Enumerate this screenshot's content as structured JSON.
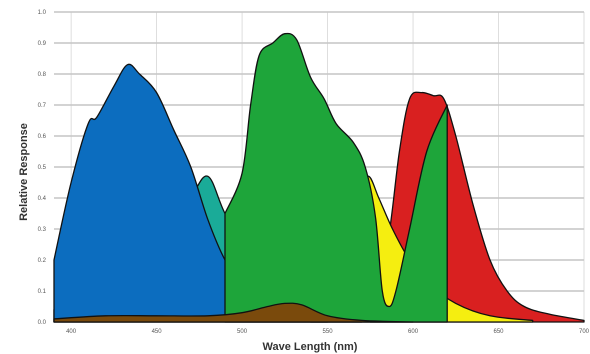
{
  "chart_data": {
    "type": "area",
    "title": "",
    "xlabel": "Wave Length (nm)",
    "ylabel": "Relative Response",
    "xlim": [
      390,
      700
    ],
    "ylim": [
      0,
      1.0
    ],
    "x_ticks": [
      400,
      450,
      500,
      550,
      600,
      650,
      700
    ],
    "y_ticks": [
      0.0,
      0.1,
      0.2,
      0.3,
      0.4,
      0.5,
      0.6,
      0.7,
      0.8,
      0.9,
      1.0
    ],
    "x_tick_labels": [
      "400",
      "450",
      "500",
      "550",
      "600",
      "650",
      "700"
    ],
    "y_tick_labels": [
      "0.0",
      "0.1",
      "0.2",
      "0.3",
      "0.4",
      "0.5",
      "0.6",
      "0.7",
      "0.8",
      "0.9",
      "1.0"
    ],
    "grid": true,
    "legend": false,
    "series": [
      {
        "color": "#d92020",
        "x": [
          575,
          585,
          592,
          598,
          605,
          612,
          618,
          625,
          635,
          645,
          655,
          665,
          680,
          700
        ],
        "y": [
          0.05,
          0.25,
          0.55,
          0.72,
          0.74,
          0.73,
          0.72,
          0.6,
          0.38,
          0.2,
          0.1,
          0.05,
          0.025,
          0.005
        ]
      },
      {
        "color": "#f5ee10",
        "x": [
          540,
          550,
          558,
          562,
          568,
          574,
          580,
          588,
          598,
          610,
          625,
          645,
          670
        ],
        "y": [
          0.05,
          0.06,
          0.1,
          0.25,
          0.42,
          0.47,
          0.4,
          0.3,
          0.2,
          0.12,
          0.06,
          0.02,
          0.005
        ]
      },
      {
        "color": "#1aab98",
        "x": [
          390,
          405,
          420,
          440,
          455,
          470,
          480,
          490,
          505,
          520,
          535,
          550,
          570
        ],
        "y": [
          0.04,
          0.08,
          0.11,
          0.16,
          0.26,
          0.4,
          0.47,
          0.35,
          0.2,
          0.12,
          0.07,
          0.04,
          0.01
        ]
      },
      {
        "color": "#0c6dbf",
        "x": [
          390,
          400,
          410,
          415,
          425,
          433,
          440,
          450,
          460,
          470,
          480,
          490,
          500,
          510,
          520,
          535,
          550
        ],
        "y": [
          0.2,
          0.45,
          0.64,
          0.66,
          0.76,
          0.83,
          0.8,
          0.74,
          0.62,
          0.5,
          0.33,
          0.2,
          0.12,
          0.06,
          0.03,
          0.01,
          0.0
        ]
      },
      {
        "color": "#1ea53a",
        "x": [
          490,
          500,
          505,
          510,
          518,
          525,
          532,
          540,
          548,
          555,
          565,
          572,
          578,
          582,
          586,
          590,
          598,
          608,
          620
        ],
        "y": [
          0.35,
          0.48,
          0.7,
          0.86,
          0.9,
          0.93,
          0.91,
          0.79,
          0.72,
          0.64,
          0.58,
          0.5,
          0.34,
          0.1,
          0.05,
          0.1,
          0.3,
          0.55,
          0.7
        ]
      },
      {
        "color": "#7a4a0c",
        "x": [
          390,
          420,
          450,
          480,
          500,
          515,
          525,
          535,
          550,
          570,
          600
        ],
        "y": [
          0.01,
          0.02,
          0.02,
          0.02,
          0.03,
          0.05,
          0.06,
          0.055,
          0.02,
          0.005,
          0.0
        ]
      }
    ]
  }
}
